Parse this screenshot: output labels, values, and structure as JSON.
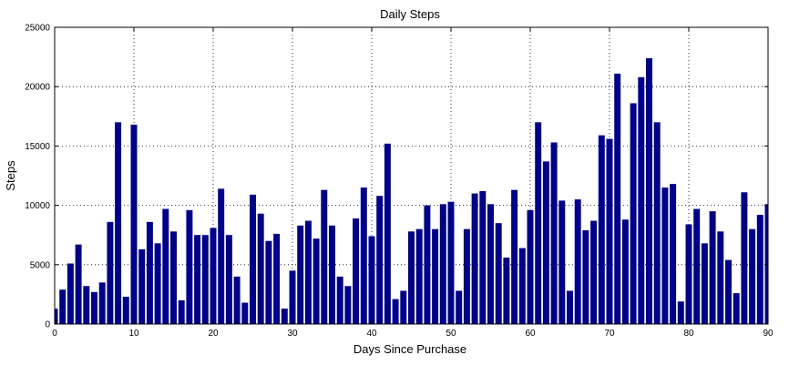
{
  "chart_data": {
    "type": "bar",
    "title": "Daily Steps",
    "xlabel": "Days Since Purchase",
    "ylabel": "Steps",
    "xlim": [
      0,
      90
    ],
    "ylim": [
      0,
      25000
    ],
    "xticks": [
      0,
      10,
      20,
      30,
      40,
      50,
      60,
      70,
      80,
      90
    ],
    "yticks": [
      0,
      5000,
      10000,
      15000,
      20000,
      25000
    ],
    "grid": true,
    "bar_color": "#00008f",
    "x": [
      0,
      1,
      2,
      3,
      4,
      5,
      6,
      7,
      8,
      9,
      10,
      11,
      12,
      13,
      14,
      15,
      16,
      17,
      18,
      19,
      20,
      21,
      22,
      23,
      24,
      25,
      26,
      27,
      28,
      29,
      30,
      31,
      32,
      33,
      34,
      35,
      36,
      37,
      38,
      39,
      40,
      41,
      42,
      43,
      44,
      45,
      46,
      47,
      48,
      49,
      50,
      51,
      52,
      53,
      54,
      55,
      56,
      57,
      58,
      59,
      60,
      61,
      62,
      63,
      64,
      65,
      66,
      67,
      68,
      69,
      70,
      71,
      72,
      73,
      74,
      75,
      76,
      77,
      78,
      79,
      80,
      81,
      82,
      83,
      84,
      85,
      86,
      87,
      88,
      89,
      90
    ],
    "values": [
      1300,
      2900,
      5100,
      6700,
      3200,
      2700,
      3500,
      8600,
      17000,
      2300,
      16800,
      6300,
      8600,
      6800,
      9700,
      7800,
      2000,
      9600,
      7500,
      7500,
      8100,
      11400,
      7500,
      4000,
      1800,
      10900,
      9300,
      7000,
      7600,
      1300,
      4500,
      8300,
      8700,
      7200,
      11300,
      8300,
      4000,
      3200,
      8900,
      11500,
      7400,
      10800,
      15200,
      2100,
      2800,
      7800,
      8000,
      10000,
      8000,
      10100,
      10300,
      2800,
      8000,
      11000,
      11200,
      10100,
      8500,
      5600,
      11300,
      6400,
      9600,
      17000,
      13700,
      15300,
      10400,
      2800,
      10500,
      7900,
      8700,
      15900,
      15600,
      21100,
      8800,
      18600,
      20800,
      22400,
      17000,
      11500,
      11800,
      1900,
      8400,
      9700,
      6800,
      9500,
      7800,
      5400,
      2600,
      11100,
      8000,
      9200,
      10100
    ]
  }
}
